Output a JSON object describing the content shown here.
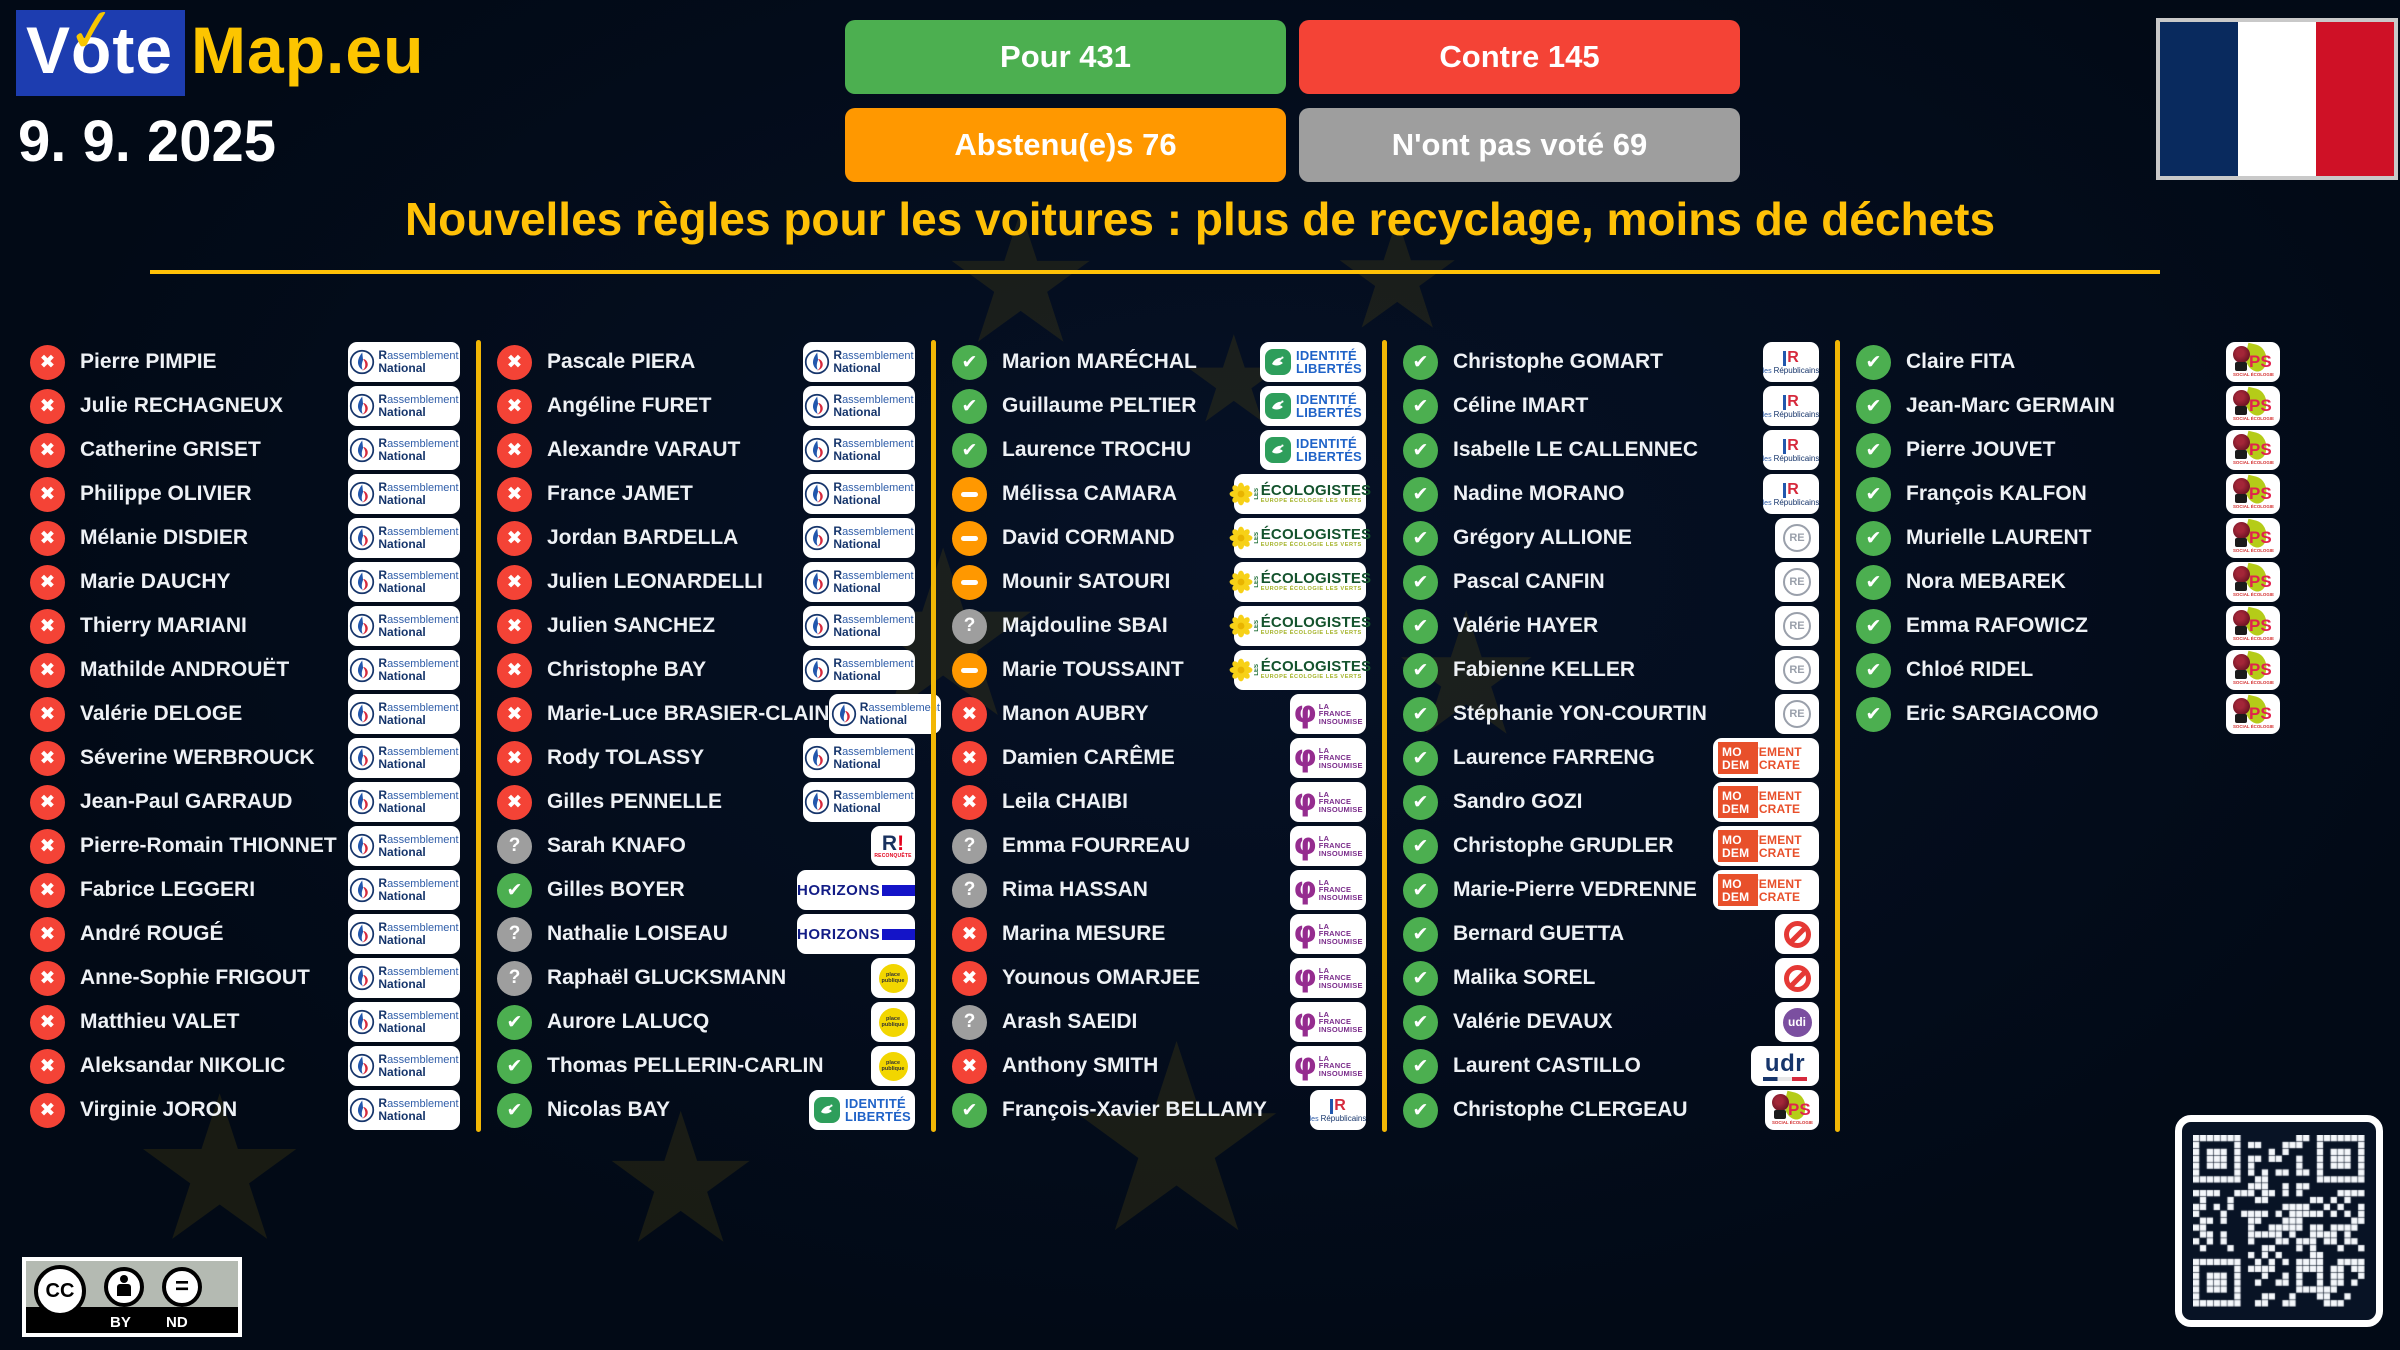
{
  "theme": {
    "background": "#020a16",
    "accent_gold": "#ffc107",
    "divider_gold": "#f2b705",
    "logo_blue": "#1d3db0"
  },
  "header": {
    "logo": {
      "vote": "Vote",
      "map": "Map.eu"
    },
    "date": "9. 9. 2025",
    "results": [
      {
        "id": "pour",
        "label": "Pour",
        "count": 431,
        "color": "#4caf50"
      },
      {
        "id": "contre",
        "label": "Contre",
        "count": 145,
        "color": "#f44336"
      },
      {
        "id": "abstention",
        "label": "Abstenu(e)s",
        "count": 76,
        "color": "#ff9800"
      },
      {
        "id": "novote",
        "label": "N'ont pas voté",
        "count": 69,
        "color": "#9e9e9e"
      }
    ],
    "flag": {
      "country": "France",
      "colors": [
        "#092a5e",
        "#ffffff",
        "#cf1126"
      ]
    }
  },
  "title": "Nouvelles règles pour les voitures : plus de recyclage, moins de déchets",
  "vote_styles": {
    "pour": {
      "glyph": "✔",
      "color": "#4caf50"
    },
    "contre": {
      "glyph": "✖",
      "color": "#f44336"
    },
    "abstention": {
      "glyph": "–",
      "color": "#ff9800"
    },
    "novote": {
      "glyph": "?",
      "color": "#9e9e9e"
    }
  },
  "parties": {
    "rn": {
      "name": "Rassemblement National",
      "lines": [
        "Rassemblement",
        "National"
      ]
    },
    "rec": {
      "name": "Reconquête",
      "mark": "R",
      "bang": "!",
      "sub": "RECONQUÊTE"
    },
    "horizons": {
      "name": "Horizons",
      "label": "HORIZONS"
    },
    "pp": {
      "name": "Place publique",
      "lines": [
        "place",
        "publique"
      ]
    },
    "il": {
      "name": "Identité Libertés",
      "lines": [
        "IDENTITÉ",
        "LIBERTÉS"
      ]
    },
    "eelv": {
      "name": "Les Écologistes",
      "les": "LES",
      "label": "ÉCOLOGISTES",
      "sub": "EUROPE ÉCOLOGIE LES VERTS"
    },
    "fi": {
      "name": "La France insoumise",
      "lines": [
        "LA",
        "FRANCE",
        "INSOUMISE"
      ]
    },
    "lr": {
      "name": "Les Républicains",
      "mark": "R",
      "lines": [
        "les",
        "Républicains"
      ]
    },
    "re": {
      "name": "Renaissance",
      "label": "RE"
    },
    "modem": {
      "name": "Mouvement Démocrate",
      "l1a": "MO",
      "l1b": "UVEMENT",
      "l2a": "DEM",
      "l2b": "OCRATE"
    },
    "ni": {
      "name": "Non inscrit"
    },
    "udi": {
      "name": "UDI",
      "label": "udi"
    },
    "udr": {
      "name": "UDR",
      "label": "udr"
    },
    "ps": {
      "name": "Parti socialiste",
      "label": "PS",
      "sub": "SOCIAL ÉCOLOGIE"
    }
  },
  "columns": [
    [
      {
        "name": "Pierre PIMPIE",
        "vote": "contre",
        "party": "rn"
      },
      {
        "name": "Julie RECHAGNEUX",
        "vote": "contre",
        "party": "rn"
      },
      {
        "name": "Catherine GRISET",
        "vote": "contre",
        "party": "rn"
      },
      {
        "name": "Philippe OLIVIER",
        "vote": "contre",
        "party": "rn"
      },
      {
        "name": "Mélanie DISDIER",
        "vote": "contre",
        "party": "rn"
      },
      {
        "name": "Marie DAUCHY",
        "vote": "contre",
        "party": "rn"
      },
      {
        "name": "Thierry MARIANI",
        "vote": "contre",
        "party": "rn"
      },
      {
        "name": "Mathilde ANDROUËT",
        "vote": "contre",
        "party": "rn"
      },
      {
        "name": "Valérie DELOGE",
        "vote": "contre",
        "party": "rn"
      },
      {
        "name": "Séverine WERBROUCK",
        "vote": "contre",
        "party": "rn"
      },
      {
        "name": "Jean-Paul GARRAUD",
        "vote": "contre",
        "party": "rn"
      },
      {
        "name": "Pierre-Romain THIONNET",
        "vote": "contre",
        "party": "rn"
      },
      {
        "name": "Fabrice LEGGERI",
        "vote": "contre",
        "party": "rn"
      },
      {
        "name": "André ROUGÉ",
        "vote": "contre",
        "party": "rn"
      },
      {
        "name": "Anne-Sophie FRIGOUT",
        "vote": "contre",
        "party": "rn"
      },
      {
        "name": "Matthieu VALET",
        "vote": "contre",
        "party": "rn"
      },
      {
        "name": "Aleksandar NIKOLIC",
        "vote": "contre",
        "party": "rn"
      },
      {
        "name": "Virginie JORON",
        "vote": "contre",
        "party": "rn"
      }
    ],
    [
      {
        "name": "Pascale PIERA",
        "vote": "contre",
        "party": "rn"
      },
      {
        "name": "Angéline FURET",
        "vote": "contre",
        "party": "rn"
      },
      {
        "name": "Alexandre VARAUT",
        "vote": "contre",
        "party": "rn"
      },
      {
        "name": "France JAMET",
        "vote": "contre",
        "party": "rn"
      },
      {
        "name": "Jordan BARDELLA",
        "vote": "contre",
        "party": "rn"
      },
      {
        "name": "Julien LEONARDELLI",
        "vote": "contre",
        "party": "rn"
      },
      {
        "name": "Julien SANCHEZ",
        "vote": "contre",
        "party": "rn"
      },
      {
        "name": "Christophe BAY",
        "vote": "contre",
        "party": "rn"
      },
      {
        "name": "Marie-Luce BRASIER-CLAIN",
        "vote": "contre",
        "party": "rn"
      },
      {
        "name": "Rody TOLASSY",
        "vote": "contre",
        "party": "rn"
      },
      {
        "name": "Gilles PENNELLE",
        "vote": "contre",
        "party": "rn"
      },
      {
        "name": "Sarah KNAFO",
        "vote": "novote",
        "party": "rec"
      },
      {
        "name": "Gilles BOYER",
        "vote": "pour",
        "party": "horizons"
      },
      {
        "name": "Nathalie LOISEAU",
        "vote": "novote",
        "party": "horizons"
      },
      {
        "name": "Raphaël GLUCKSMANN",
        "vote": "novote",
        "party": "pp"
      },
      {
        "name": "Aurore LALUCQ",
        "vote": "pour",
        "party": "pp"
      },
      {
        "name": "Thomas PELLERIN-CARLIN",
        "vote": "pour",
        "party": "pp"
      },
      {
        "name": "Nicolas BAY",
        "vote": "pour",
        "party": "il"
      }
    ],
    [
      {
        "name": "Marion MARÉCHAL",
        "vote": "pour",
        "party": "il"
      },
      {
        "name": "Guillaume PELTIER",
        "vote": "pour",
        "party": "il"
      },
      {
        "name": "Laurence TROCHU",
        "vote": "pour",
        "party": "il"
      },
      {
        "name": "Mélissa CAMARA",
        "vote": "abstention",
        "party": "eelv"
      },
      {
        "name": "David CORMAND",
        "vote": "abstention",
        "party": "eelv"
      },
      {
        "name": "Mounir SATOURI",
        "vote": "abstention",
        "party": "eelv"
      },
      {
        "name": "Majdouline SBAI",
        "vote": "novote",
        "party": "eelv"
      },
      {
        "name": "Marie TOUSSAINT",
        "vote": "abstention",
        "party": "eelv"
      },
      {
        "name": "Manon AUBRY",
        "vote": "contre",
        "party": "fi"
      },
      {
        "name": "Damien CARÊME",
        "vote": "contre",
        "party": "fi"
      },
      {
        "name": "Leila CHAIBI",
        "vote": "contre",
        "party": "fi"
      },
      {
        "name": "Emma FOURREAU",
        "vote": "novote",
        "party": "fi"
      },
      {
        "name": "Rima HASSAN",
        "vote": "novote",
        "party": "fi"
      },
      {
        "name": "Marina MESURE",
        "vote": "contre",
        "party": "fi"
      },
      {
        "name": "Younous OMARJEE",
        "vote": "contre",
        "party": "fi"
      },
      {
        "name": "Arash SAEIDI",
        "vote": "novote",
        "party": "fi"
      },
      {
        "name": "Anthony SMITH",
        "vote": "contre",
        "party": "fi"
      },
      {
        "name": "François-Xavier BELLAMY",
        "vote": "pour",
        "party": "lr"
      }
    ],
    [
      {
        "name": "Christophe GOMART",
        "vote": "pour",
        "party": "lr"
      },
      {
        "name": "Céline IMART",
        "vote": "pour",
        "party": "lr"
      },
      {
        "name": "Isabelle LE CALLENNEC",
        "vote": "pour",
        "party": "lr"
      },
      {
        "name": "Nadine MORANO",
        "vote": "pour",
        "party": "lr"
      },
      {
        "name": "Grégory ALLIONE",
        "vote": "pour",
        "party": "re"
      },
      {
        "name": "Pascal CANFIN",
        "vote": "pour",
        "party": "re"
      },
      {
        "name": "Valérie HAYER",
        "vote": "pour",
        "party": "re"
      },
      {
        "name": "Fabienne KELLER",
        "vote": "pour",
        "party": "re"
      },
      {
        "name": "Stéphanie YON-COURTIN",
        "vote": "pour",
        "party": "re"
      },
      {
        "name": "Laurence FARRENG",
        "vote": "pour",
        "party": "modem"
      },
      {
        "name": "Sandro GOZI",
        "vote": "pour",
        "party": "modem"
      },
      {
        "name": "Christophe GRUDLER",
        "vote": "pour",
        "party": "modem"
      },
      {
        "name": "Marie-Pierre VEDRENNE",
        "vote": "pour",
        "party": "modem"
      },
      {
        "name": "Bernard GUETTA",
        "vote": "pour",
        "party": "ni"
      },
      {
        "name": "Malika SOREL",
        "vote": "pour",
        "party": "ni"
      },
      {
        "name": "Valérie DEVAUX",
        "vote": "pour",
        "party": "udi"
      },
      {
        "name": "Laurent CASTILLO",
        "vote": "pour",
        "party": "udr"
      },
      {
        "name": "Christophe CLERGEAU",
        "vote": "pour",
        "party": "ps"
      }
    ],
    [
      {
        "name": "Claire FITA",
        "vote": "pour",
        "party": "ps"
      },
      {
        "name": "Jean-Marc GERMAIN",
        "vote": "pour",
        "party": "ps"
      },
      {
        "name": "Pierre JOUVET",
        "vote": "pour",
        "party": "ps"
      },
      {
        "name": "François KALFON",
        "vote": "pour",
        "party": "ps"
      },
      {
        "name": "Murielle LAURENT",
        "vote": "pour",
        "party": "ps"
      },
      {
        "name": "Nora MEBAREK",
        "vote": "pour",
        "party": "ps"
      },
      {
        "name": "Emma RAFOWICZ",
        "vote": "pour",
        "party": "ps"
      },
      {
        "name": "Chloé RIDEL",
        "vote": "pour",
        "party": "ps"
      },
      {
        "name": "Eric SARGIACOMO",
        "vote": "pour",
        "party": "ps"
      }
    ]
  ],
  "footer": {
    "license": {
      "cc": "CC",
      "by": "BY",
      "nd": "ND"
    }
  }
}
